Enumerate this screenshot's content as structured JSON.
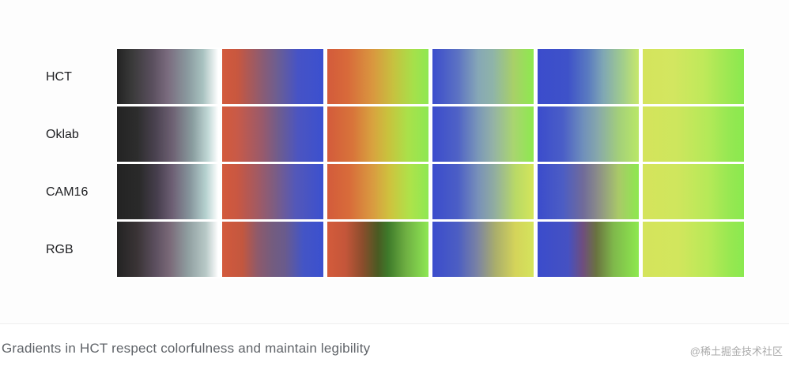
{
  "rows": [
    {
      "label": "HCT"
    },
    {
      "label": "Oklab"
    },
    {
      "label": "CAM16"
    },
    {
      "label": "RGB"
    }
  ],
  "gradients": [
    [
      "linear-gradient(90deg,#232323 0%,#3a3a3a 15%,#5a4f5e 35%,#7a6b7e 50%,#8a9a9f 70%,#a8c2c0 85%,#ffffff 100%)",
      "linear-gradient(90deg,#d35a3c 0%,#c8573f 15%,#8a5c74 40%,#6b5e93 55%,#4653c6 75%,#3b50cf 100%)",
      "linear-gradient(90deg,#d35b3b 0%,#d86a3a 20%,#d9973f 45%,#c7c13f 65%,#a6e04a 85%,#8ee853 100%)",
      "linear-gradient(90deg,#3b4ccc 0%,#5c72c3 25%,#86a7b6 45%,#8fb4a8 60%,#a8d068 80%,#8de94e 100%)",
      "linear-gradient(90deg,#3b4ccc 0%,#3e52c9 30%,#5a7bc0 50%,#80a7b4 65%,#a3cf8a 85%,#c7e86b 100%)",
      "linear-gradient(90deg,#d5e45c 0%,#d3e660 30%,#bfe95a 60%,#9ce852 85%,#8ae94f 100%)"
    ],
    [
      "linear-gradient(90deg,#232323 0%,#2d2d2d 20%,#4a4250 38%,#6e6173 55%,#8a9ea0 75%,#c1d8d6 90%,#ffffff 100%)",
      "linear-gradient(90deg,#d35a3c 0%,#c85a48 15%,#985a6c 40%,#705d8c 55%,#4c55c0 75%,#3b50cf 100%)",
      "linear-gradient(90deg,#d35b3b 0%,#d8743a 25%,#d8a33f 45%,#c9c23d 60%,#a9e14a 80%,#8de853 100%)",
      "linear-gradient(90deg,#3b4ccc 0%,#4f62c6 25%,#7a97b8 45%,#94b2a6 60%,#a9d570 80%,#8de94e 100%)",
      "linear-gradient(90deg,#3b4ccc 0%,#4a5ec7 25%,#6f8fbb 45%,#88a9aa 60%,#a3cf7a 80%,#b9e867 100%)",
      "linear-gradient(90deg,#d5e45c 0%,#cde65d 35%,#b3e958 65%,#96e852 85%,#8ae94f 100%)"
    ],
    [
      "linear-gradient(90deg,#232323 0%,#2a2a2a 22%,#473f4e 40%,#6e6075 55%,#86959c 72%,#b6d2d0 88%,#ffffff 100%)",
      "linear-gradient(90deg,#d35a3c 0%,#c95742 15%,#a25a63 35%,#7c5d83 52%,#5458b8 72%,#3b50cf 100%)",
      "linear-gradient(90deg,#d35b3b 0%,#d86c3a 22%,#d99b40 45%,#cec33e 62%,#ade34a 82%,#8ee853 100%)",
      "linear-gradient(90deg,#3b4ccc 0%,#4b5ec6 25%,#7890b9 45%,#92ae9f 62%,#b9d966 82%,#d4e65a 100%)",
      "linear-gradient(90deg,#3b4ccc 0%,#4c5dc4 25%,#706b9a 45%,#8c8e88 60%,#a9c968 80%,#8de94e 100%)",
      "linear-gradient(90deg,#d5e45c 0%,#cfe65d 35%,#b6e958 65%,#98e852 85%,#8ae94f 100%)"
    ],
    [
      "linear-gradient(90deg,#232323 0%,#3a3436 20%,#5c4f5f 38%,#7a6978 52%,#8f9ea0 70%,#b8c9c7 88%,#ffffff 100%)",
      "linear-gradient(90deg,#d35a3c 0%,#c3573f 20%,#8e5a6b 35%,#735c7f 50%,#6a5b8c 62%,#4455c5 80%,#3b50cf 100%)",
      "linear-gradient(90deg,#d35b3b 0%,#c4563a 18%,#8a4d2c 35%,#4a5a22 50%,#3e7a2a 60%,#6fb043 78%,#8ee853 100%)",
      "linear-gradient(90deg,#3b4ccc 0%,#4c5ec3 25%,#7c84a2 45%,#a9ad6c 62%,#d4d45a 82%,#d5e45c 100%)",
      "linear-gradient(90deg,#3b4ccc 0%,#4551c2 30%,#6f4e7d 45%,#6a7340 58%,#7fb84b 75%,#8de94e 100%)",
      "linear-gradient(90deg,#d5e45c 0%,#d2e65d 35%,#b8e957 65%,#99e851 85%,#8ae94f 100%)"
    ]
  ],
  "caption": "Gradients in HCT respect colorfulness and maintain legibility",
  "watermark": "@稀土掘金技术社区"
}
